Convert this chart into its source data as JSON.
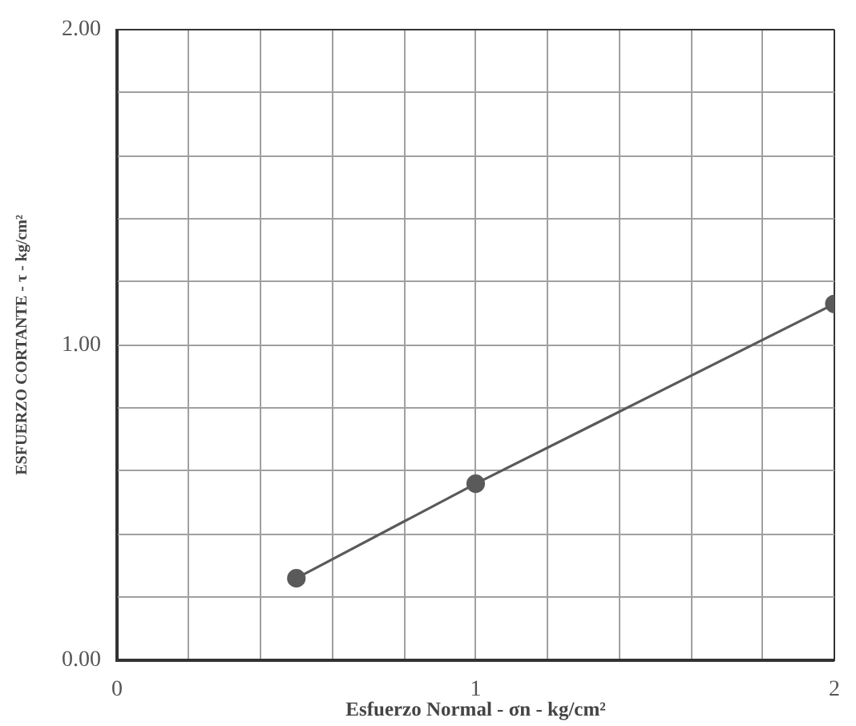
{
  "chart_data": {
    "type": "line",
    "xlabel": "Esfuerzo Normal - σn - kg/cm²",
    "ylabel": "ESFUERZO CORTANTE - τ - kg/cm²",
    "x": [
      0.5,
      1,
      2
    ],
    "values": [
      0.26,
      0.56,
      1.13
    ],
    "color": "#5a5a5a",
    "marker": "circle",
    "xlim": [
      0,
      2
    ],
    "ylim": [
      0,
      2
    ],
    "xticks": [
      0,
      {
        "value": 0.2,
        "label": null
      },
      {
        "value": 0.4,
        "label": null
      },
      {
        "value": 0.6,
        "label": null
      },
      {
        "value": 0.8,
        "label": null
      },
      1,
      {
        "value": 1.2,
        "label": null
      },
      {
        "value": 1.4,
        "label": null
      },
      {
        "value": 1.6,
        "label": null
      },
      {
        "value": 1.8,
        "label": null
      },
      2
    ],
    "yticks": [
      {
        "value": 0,
        "label": "0.00"
      },
      {
        "value": 0.2,
        "label": null
      },
      {
        "value": 0.4,
        "label": null
      },
      {
        "value": 0.6,
        "label": null
      },
      {
        "value": 0.8,
        "label": null
      },
      {
        "value": 1,
        "label": "1.00"
      },
      {
        "value": 1.2,
        "label": null
      },
      {
        "value": 1.4,
        "label": null
      },
      {
        "value": 1.6,
        "label": null
      },
      {
        "value": 1.8,
        "label": null
      },
      {
        "value": 2,
        "label": "2.00"
      }
    ],
    "grid": true
  }
}
